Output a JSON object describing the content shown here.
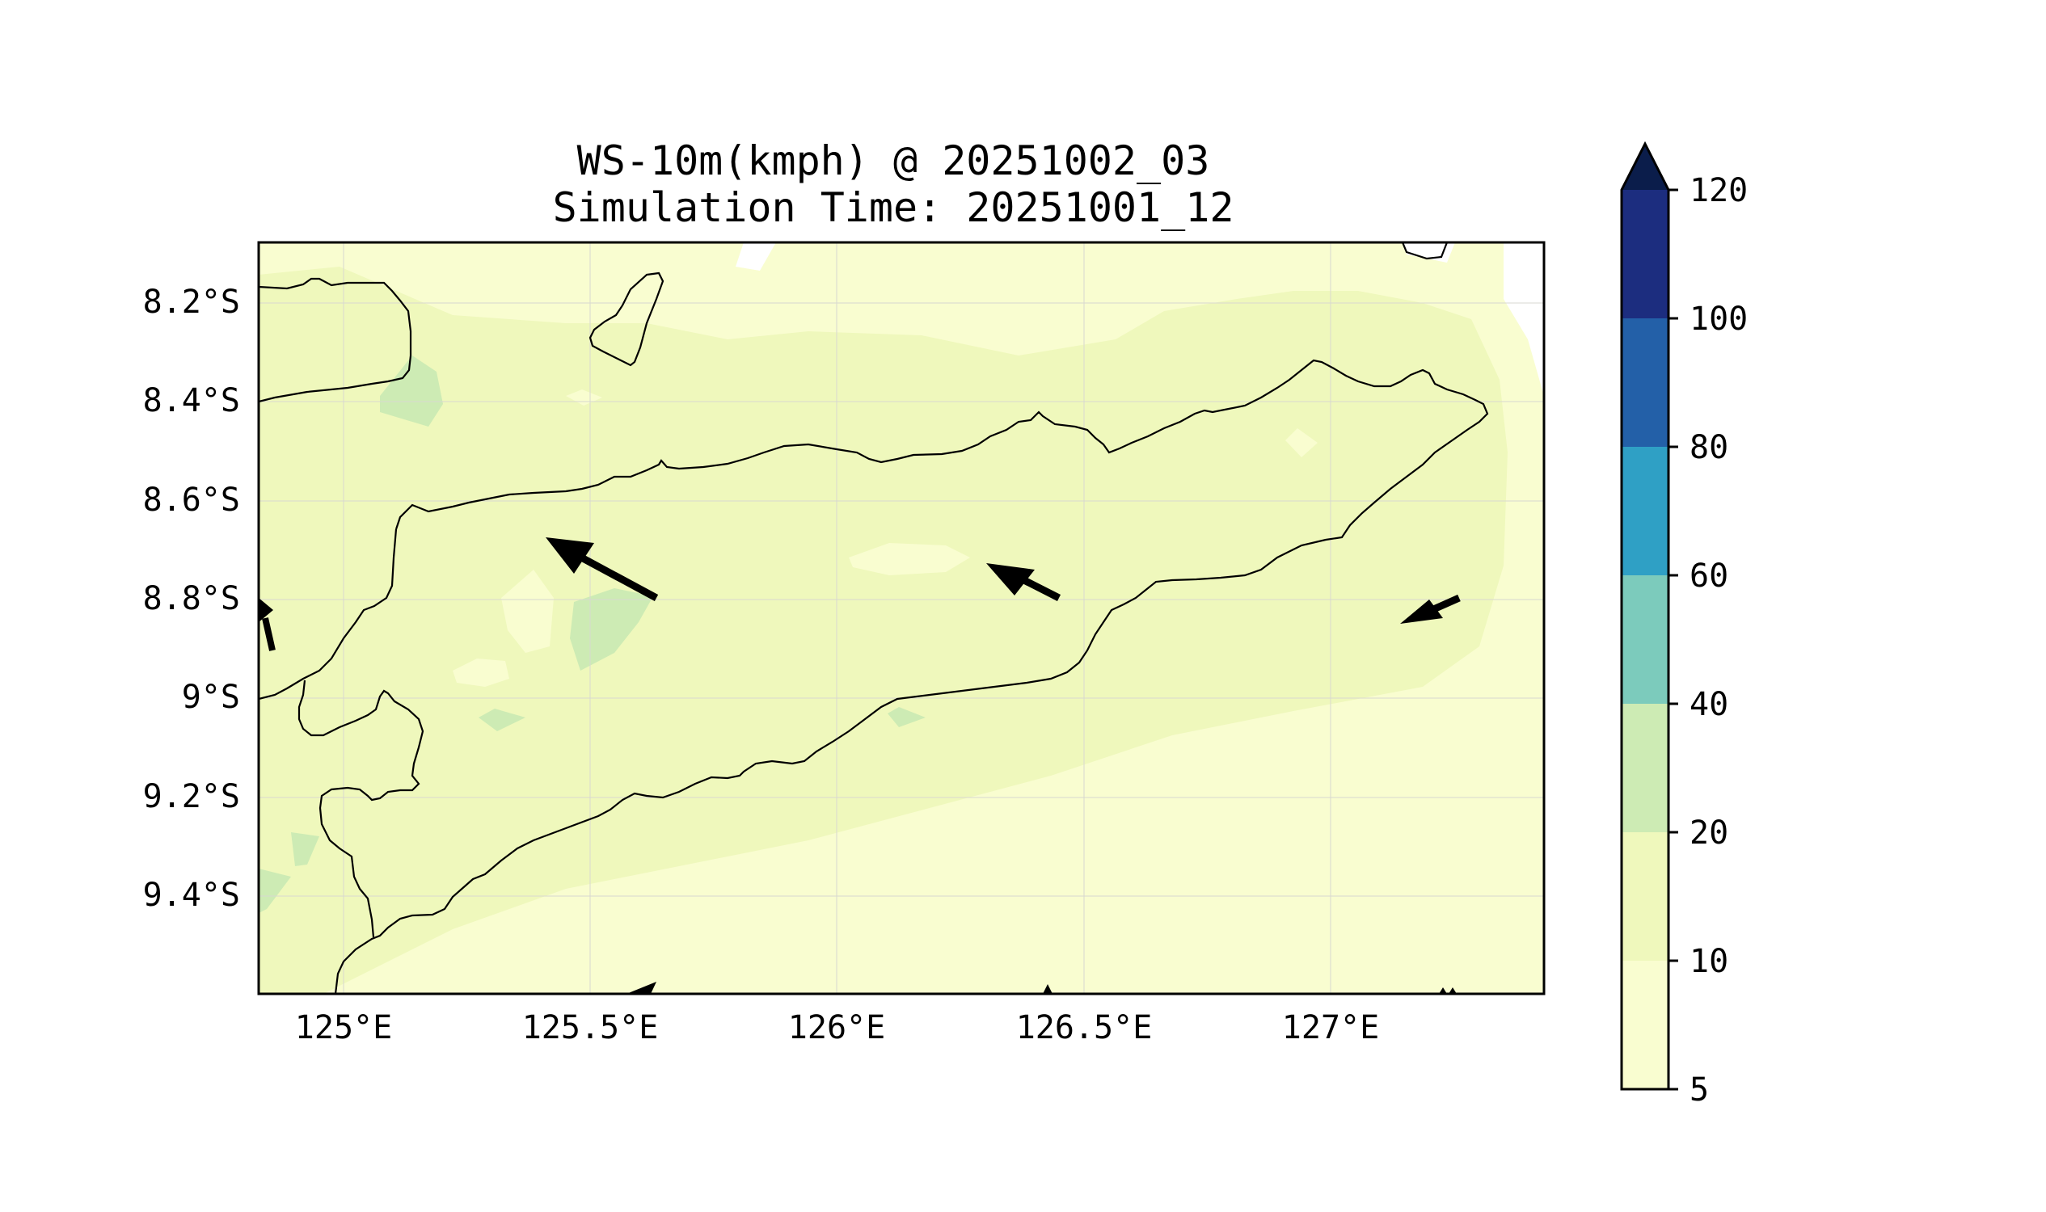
{
  "title": "WS-10m(kmph) @ 20251002_03",
  "subtitle": "Simulation Time: 20251001_12",
  "map": {
    "lat_ticks": [
      "8.2°S",
      "8.4°S",
      "8.6°S",
      "8.8°S",
      "9°S",
      "9.2°S",
      "9.4°S"
    ],
    "lon_ticks": [
      "125°E",
      "125.5°E",
      "126°E",
      "126.5°E",
      "127°E"
    ],
    "lon_range": [
      124.83,
      127.43
    ],
    "lat_range": [
      -9.6,
      -8.08
    ],
    "grid": true
  },
  "colorbar": {
    "tick_labels": [
      "5",
      "10",
      "20",
      "40",
      "60",
      "80",
      "100",
      "120"
    ],
    "colors": [
      "#f9fdd0",
      "#eff8bc",
      "#cdebb4",
      "#7ccbbc",
      "#2fa0c5",
      "#2360a8",
      "#1c2d7f",
      "#0b1d4b"
    ],
    "extend": "max"
  },
  "wind_vectors": [
    {
      "lon": 125.64,
      "lat": -8.8,
      "direction": "northwest",
      "length": "long"
    },
    {
      "lon": 126.45,
      "lat": -8.8,
      "direction": "northwest",
      "length": "short"
    },
    {
      "lon": 127.26,
      "lat": -8.8,
      "direction": "southwest",
      "length": "short"
    },
    {
      "lon": 124.85,
      "lat": -8.87,
      "direction": "north",
      "length": "short"
    }
  ]
}
